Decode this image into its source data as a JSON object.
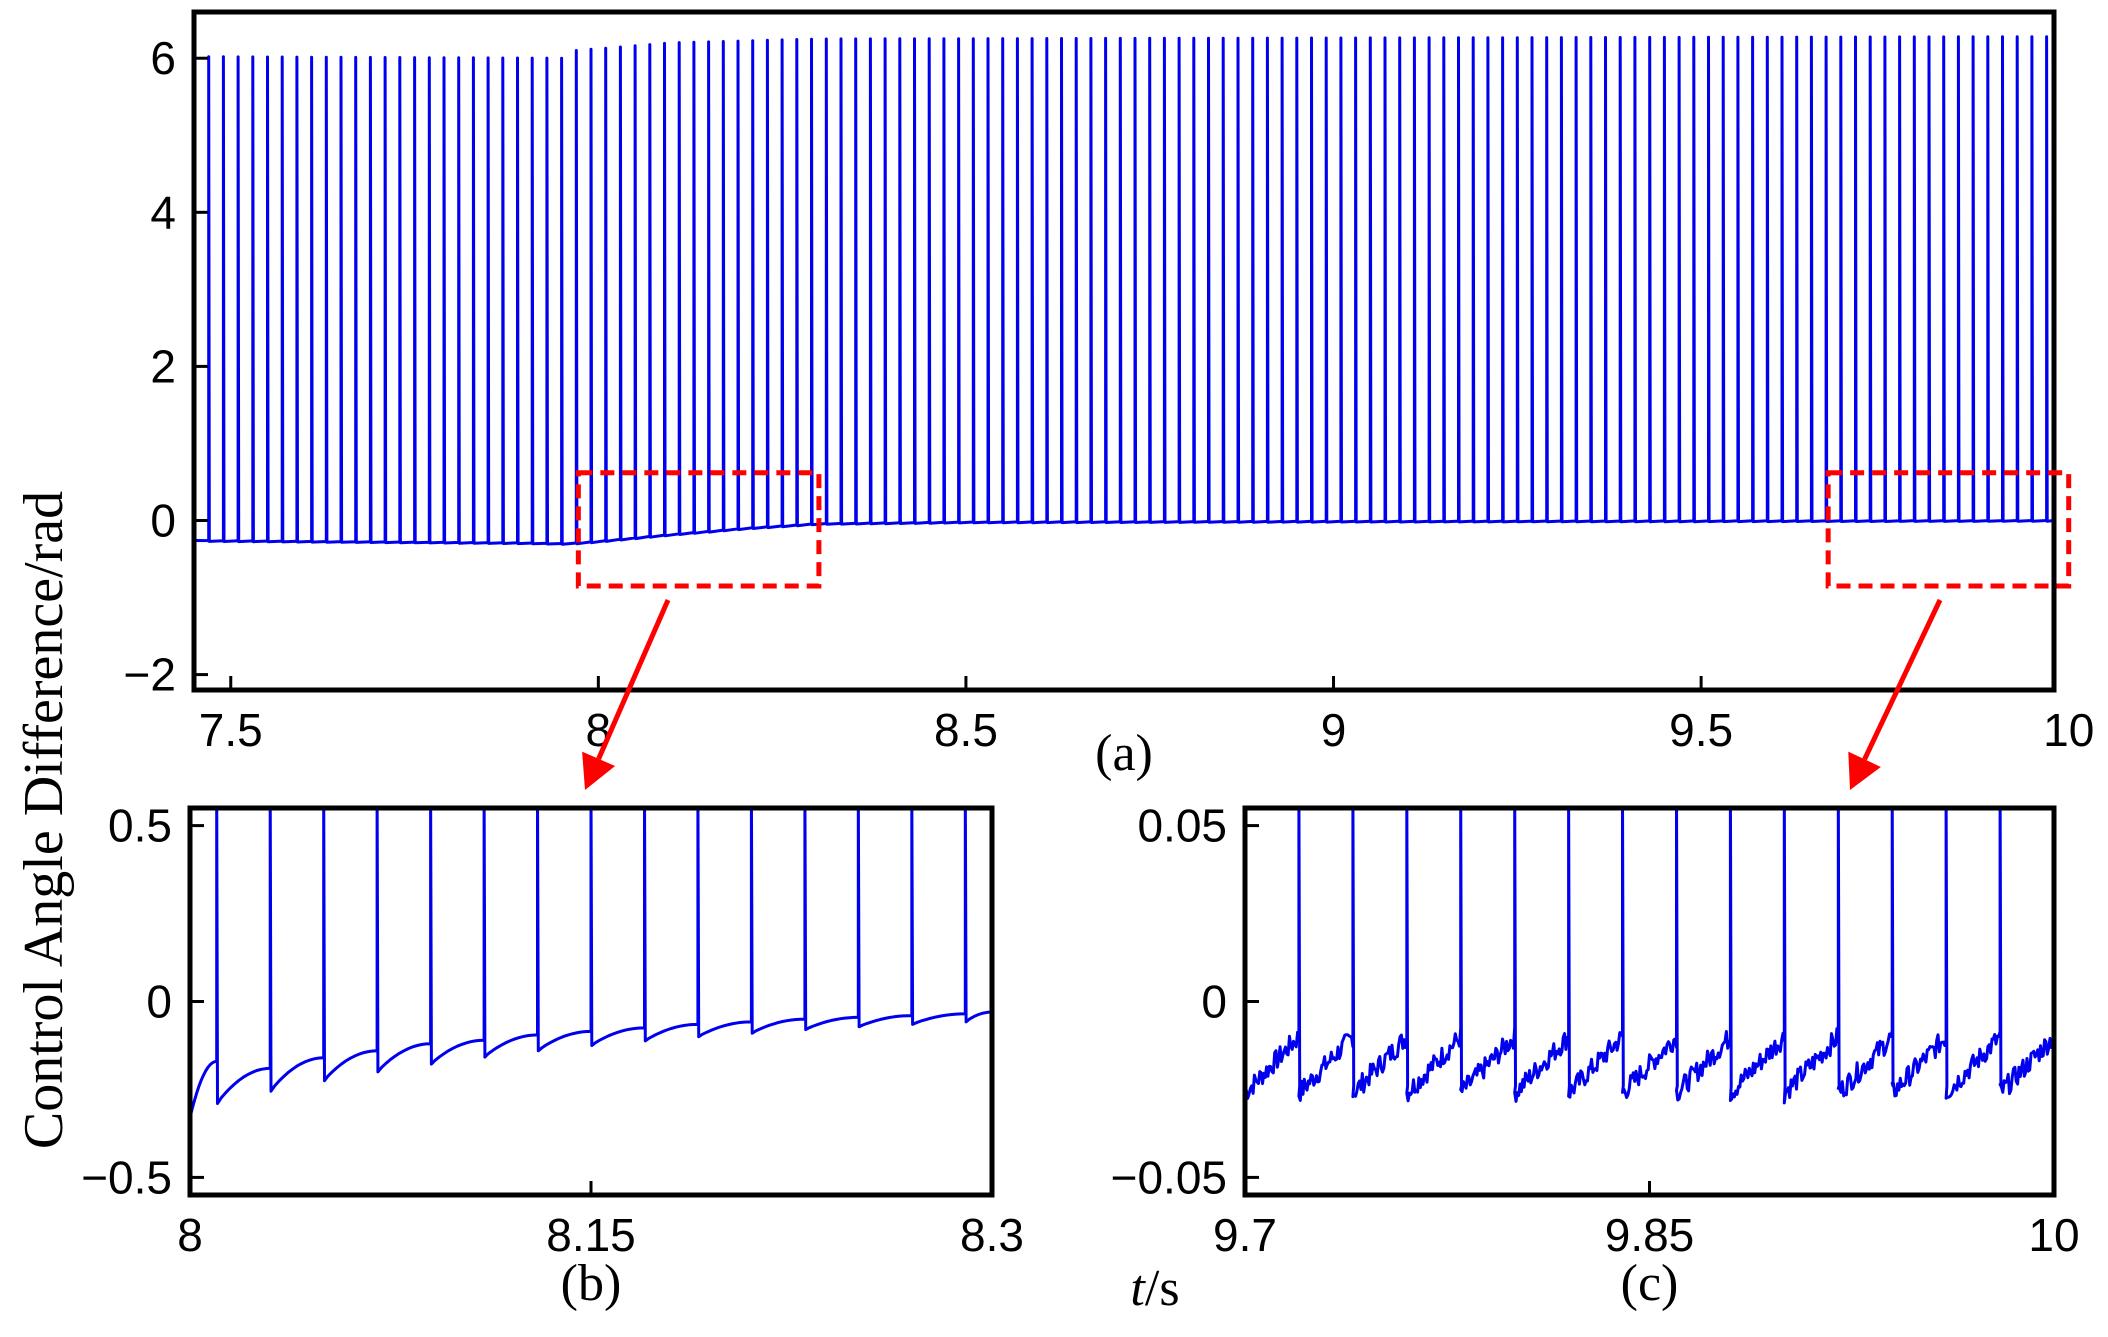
{
  "figure": {
    "ylabel": "Control Angle Difference/rad",
    "xlabel_italic": "t",
    "xlabel_unit": "/s"
  },
  "chart_data": [
    {
      "id": "a",
      "type": "line",
      "panel_label": "(a)",
      "xlim": [
        7.45,
        9.98
      ],
      "ylim": [
        -2.2,
        6.6
      ],
      "xticks": [
        7.5,
        8,
        8.5,
        9,
        9.5,
        10
      ],
      "xtick_labels": [
        "7.5",
        "8",
        "8.5",
        "9",
        "9.5",
        "10"
      ],
      "yticks": [
        -2,
        0,
        2,
        4,
        6
      ],
      "ytick_labels": [
        "−2",
        "0",
        "2",
        "4",
        "6"
      ],
      "grid": false,
      "series": [
        {
          "color": "#0000ee",
          "description_points": {
            "spike_period_s": 0.02,
            "baseline": [
              [
                7.45,
                -0.26
              ],
              [
                7.9,
                -0.29
              ],
              [
                7.96,
                -0.3
              ],
              [
                8.0,
                -0.27
              ],
              [
                8.1,
                -0.18
              ],
              [
                8.2,
                -0.1
              ],
              [
                8.3,
                -0.04
              ],
              [
                8.5,
                -0.02
              ],
              [
                9.0,
                -0.01
              ],
              [
                9.98,
                0.0
              ]
            ],
            "peak": [
              [
                7.45,
                6.02
              ],
              [
                7.96,
                6.0
              ],
              [
                7.97,
                6.1
              ],
              [
                8.1,
                6.2
              ],
              [
                8.3,
                6.25
              ],
              [
                9.98,
                6.28
              ]
            ]
          }
        }
      ],
      "zoom_regions": [
        {
          "x": [
            8.0,
            8.3
          ],
          "y": [
            -0.85,
            0.62
          ]
        },
        {
          "x": [
            9.7,
            10.0
          ],
          "y": [
            -0.85,
            0.62
          ]
        }
      ]
    },
    {
      "id": "b",
      "type": "line",
      "panel_label": "(b)",
      "xlim": [
        8.0,
        8.3
      ],
      "ylim": [
        -0.55,
        0.55
      ],
      "xticks": [
        8.0,
        8.15,
        8.3
      ],
      "xtick_labels": [
        "8",
        "8.15",
        "8.3"
      ],
      "yticks": [
        -0.5,
        0,
        0.5
      ],
      "ytick_labels": [
        "−0.5",
        "0",
        "0.5"
      ],
      "grid": false,
      "series": [
        {
          "color": "#0000ee",
          "spike_times": [
            8.01,
            8.03,
            8.05,
            8.07,
            8.09,
            8.11,
            8.13,
            8.15,
            8.17,
            8.19,
            8.21,
            8.23,
            8.25,
            8.27,
            8.29
          ],
          "pre_spike_values": [
            -0.17,
            -0.19,
            -0.16,
            -0.14,
            -0.12,
            -0.11,
            -0.095,
            -0.085,
            -0.075,
            -0.065,
            -0.058,
            -0.05,
            -0.045,
            -0.04,
            -0.035
          ],
          "post_spike_values": [
            -0.29,
            -0.255,
            -0.225,
            -0.2,
            -0.178,
            -0.158,
            -0.14,
            -0.125,
            -0.112,
            -0.1,
            -0.09,
            -0.08,
            -0.072,
            -0.065,
            -0.058
          ],
          "start_value": -0.33,
          "end_value": -0.03
        }
      ]
    },
    {
      "id": "c",
      "type": "line",
      "panel_label": "(c)",
      "xlim": [
        9.7,
        10.0
      ],
      "ylim": [
        -0.055,
        0.055
      ],
      "xticks": [
        9.7,
        9.85,
        10.0
      ],
      "xtick_labels": [
        "9.7",
        "9.85",
        "10"
      ],
      "yticks": [
        -0.05,
        0,
        0.05
      ],
      "ytick_labels": [
        "−0.05",
        "0",
        "0.05"
      ],
      "grid": false,
      "series": [
        {
          "color": "#0000ee",
          "spike_times": [
            9.72,
            9.74,
            9.76,
            9.78,
            9.8,
            9.82,
            9.84,
            9.86,
            9.88,
            9.9,
            9.92,
            9.94,
            9.96,
            9.98
          ],
          "noisy_baseline_range": [
            -0.024,
            -0.01
          ]
        }
      ]
    }
  ]
}
